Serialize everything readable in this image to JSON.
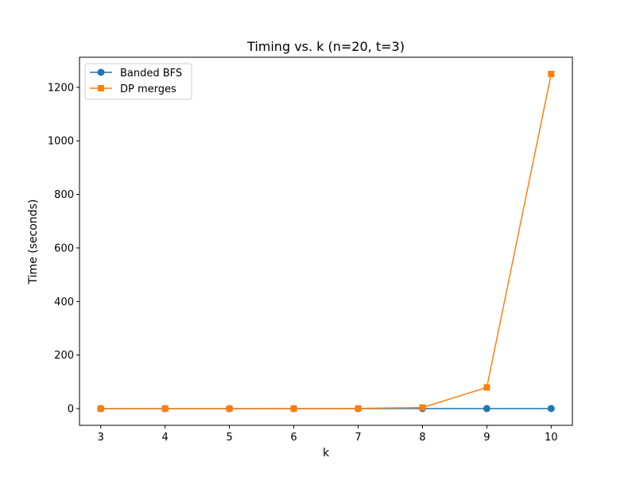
{
  "chart_data": {
    "type": "line",
    "title": "Timing vs. k (n=20, t=3)",
    "xlabel": "k",
    "ylabel": "Time (seconds)",
    "x": [
      3,
      4,
      5,
      6,
      7,
      8,
      9,
      10
    ],
    "xlim": [
      2.67,
      10.33
    ],
    "ylim": [
      -62.5,
      1312.5
    ],
    "xticks": [
      3,
      4,
      5,
      6,
      7,
      8,
      9,
      10
    ],
    "yticks": [
      0,
      200,
      400,
      600,
      800,
      1000,
      1200
    ],
    "grid": false,
    "legend_position": "top-left",
    "series": [
      {
        "name": "Banded BFS",
        "marker": "circle",
        "color": "#1f77b4",
        "values": [
          0.01,
          0.01,
          0.02,
          0.03,
          0.05,
          0.1,
          0.2,
          0.4
        ]
      },
      {
        "name": "DP merges",
        "marker": "square",
        "color": "#ff7f0e",
        "values": [
          0.01,
          0.02,
          0.05,
          0.15,
          0.6,
          4,
          79,
          1250
        ]
      }
    ]
  }
}
